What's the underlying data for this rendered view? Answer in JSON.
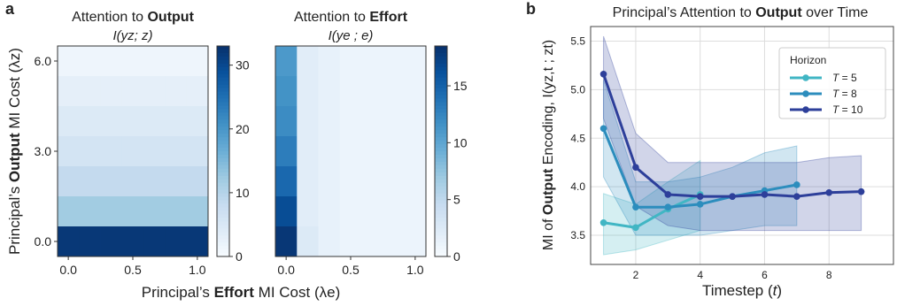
{
  "figure": {
    "panel_a_label": "a",
    "panel_b_label": "b",
    "shared_xlabel": {
      "pre": "Principal’s ",
      "bold": "Effort",
      "post": " MI Cost (λe)"
    },
    "shared_ylabel": {
      "pre": "Principal’s ",
      "bold": "Output",
      "post": " MI Cost (λz)"
    }
  },
  "chart_data": [
    {
      "type": "heatmap",
      "title": {
        "pre": "Attention to ",
        "bold": "Output"
      },
      "subtitle": "I(yz; z)",
      "x_ticks": [
        "0.0",
        "0.5",
        "1.0"
      ],
      "y_ticks": [
        "0.0",
        "3.0",
        "6.0"
      ],
      "colorbar_ticks": [
        0,
        10,
        20,
        30
      ],
      "vmin": 0,
      "vmax": 33,
      "rows_top_to_bottom": [
        [
          1.5,
          1.5,
          1.5,
          1.5,
          1.5,
          1.5,
          1.5
        ],
        [
          3.0,
          3.0,
          3.0,
          3.0,
          3.0,
          3.0,
          3.0
        ],
        [
          4.5,
          4.5,
          4.5,
          4.5,
          4.5,
          4.5,
          4.5
        ],
        [
          6.0,
          6.0,
          6.0,
          6.0,
          6.0,
          6.0,
          6.0
        ],
        [
          8.5,
          8.5,
          8.5,
          8.5,
          8.5,
          8.5,
          8.5
        ],
        [
          12,
          12,
          12,
          12,
          12,
          12,
          12
        ],
        [
          32,
          32,
          32,
          32,
          32,
          32,
          32
        ]
      ],
      "colorscale": [
        "#f7fbff",
        "#deebf7",
        "#c6dbef",
        "#9ecae1",
        "#6baed6",
        "#4292c6",
        "#2171b5",
        "#08519c",
        "#08306b"
      ]
    },
    {
      "type": "heatmap",
      "title": {
        "pre": "Attention to ",
        "bold": "Effort"
      },
      "subtitle": "I(ye ; e)",
      "x_ticks": [
        "0.0",
        "0.5",
        "1.0"
      ],
      "colorbar_ticks": [
        0,
        5,
        10,
        15
      ],
      "vmin": 0,
      "vmax": 18.5,
      "rows_top_to_bottom": [
        [
          11,
          2.0,
          1.5,
          1.0,
          1.0,
          1.0,
          1.0
        ],
        [
          11.5,
          2.0,
          1.5,
          1.0,
          1.0,
          1.0,
          1.0
        ],
        [
          12,
          2.0,
          1.5,
          1.0,
          1.0,
          1.0,
          1.0
        ],
        [
          13,
          2.0,
          1.5,
          1.0,
          1.0,
          1.0,
          1.0
        ],
        [
          14.5,
          2.0,
          1.5,
          1.0,
          1.0,
          1.0,
          1.0
        ],
        [
          16.5,
          2.0,
          1.5,
          1.0,
          1.0,
          1.0,
          1.0
        ],
        [
          18,
          2.5,
          1.5,
          1.0,
          1.0,
          1.0,
          1.0
        ]
      ],
      "colorscale": [
        "#f7fbff",
        "#deebf7",
        "#c6dbef",
        "#9ecae1",
        "#6baed6",
        "#4292c6",
        "#2171b5",
        "#08519c",
        "#08306b"
      ]
    },
    {
      "type": "line",
      "title": {
        "pre": "Principal’s Attention to ",
        "bold": "Output",
        "post": " over Time"
      },
      "xlabel": "Timestep (t)",
      "ylabel": {
        "pre": "MI of ",
        "bold": "Output",
        "post": " Encoding, I(yz,t ; zt)"
      },
      "xlim": [
        0.6,
        10.0
      ],
      "ylim": [
        3.2,
        5.65
      ],
      "x_ticks": [
        2,
        4,
        6,
        8
      ],
      "y_ticks": [
        3.5,
        4.0,
        4.5,
        5.0,
        5.5
      ],
      "grid": true,
      "legend": {
        "title": "Horizon",
        "placement": "top-right"
      },
      "series": [
        {
          "name": "T = 5",
          "color": "#41b6c4",
          "x": [
            1,
            2,
            3,
            4
          ],
          "y": [
            3.63,
            3.58,
            3.77,
            3.92
          ],
          "lower": [
            3.3,
            3.35,
            3.45,
            3.55
          ],
          "upper": [
            3.93,
            3.82,
            4.05,
            4.27
          ]
        },
        {
          "name": "T = 8",
          "color": "#2c8dbd",
          "x": [
            1,
            2,
            3,
            4,
            5,
            6,
            7
          ],
          "y": [
            4.6,
            3.79,
            3.79,
            3.82,
            3.9,
            3.96,
            4.02
          ],
          "lower": [
            4.1,
            3.5,
            3.5,
            3.5,
            3.55,
            3.6,
            3.6
          ],
          "upper": [
            5.1,
            4.05,
            4.05,
            4.1,
            4.2,
            4.35,
            4.42
          ]
        },
        {
          "name": "T = 10",
          "color": "#2d3f9a",
          "x": [
            1,
            2,
            3,
            4,
            5,
            6,
            7,
            8,
            9
          ],
          "y": [
            5.16,
            4.2,
            3.92,
            3.9,
            3.9,
            3.92,
            3.9,
            3.94,
            3.95
          ],
          "lower": [
            4.7,
            3.8,
            3.6,
            3.55,
            3.55,
            3.55,
            3.55,
            3.55,
            3.55
          ],
          "upper": [
            5.55,
            4.55,
            4.25,
            4.25,
            4.25,
            4.25,
            4.25,
            4.3,
            4.32
          ]
        }
      ]
    }
  ]
}
